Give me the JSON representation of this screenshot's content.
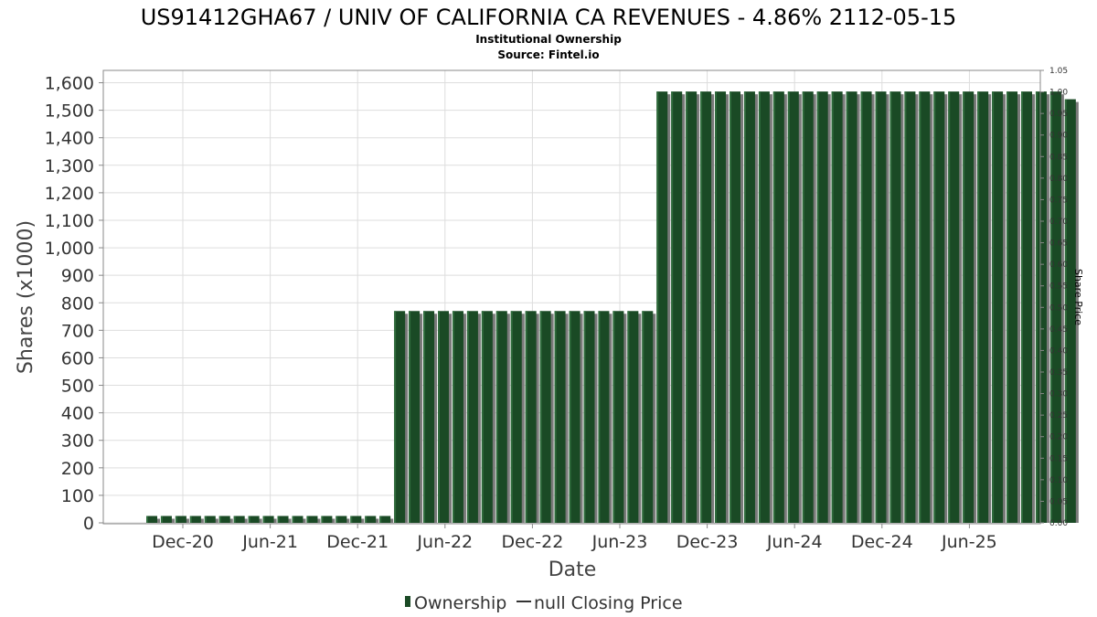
{
  "chart_data": {
    "type": "bar",
    "title": "US91412GHA67 / UNIV OF CALIFORNIA CA REVENUES - 4.86% 2112-05-15",
    "subtitle_lines": [
      "Institutional Ownership",
      "Source: Fintel.io"
    ],
    "xlabel": "Date",
    "ylabel": "Shares (x1000)",
    "y2label": "Share Price",
    "ylim": [
      0,
      1650
    ],
    "y2lim": [
      0,
      1.05
    ],
    "yticks": [
      0,
      100,
      200,
      300,
      400,
      500,
      600,
      700,
      800,
      900,
      1000,
      1100,
      1200,
      1300,
      1400,
      1500,
      1600
    ],
    "ytick_labels": [
      "0",
      "100",
      "200",
      "300",
      "400",
      "500",
      "600",
      "700",
      "800",
      "900",
      "1,000",
      "1,100",
      "1,200",
      "1,300",
      "1,400",
      "1,500",
      "1,600"
    ],
    "y2tick_labels": [
      "0.00",
      "0.05",
      "0.10",
      "0.15",
      "0.20",
      "0.25",
      "0.30",
      "0.35",
      "0.40",
      "0.45",
      "0.50",
      "0.55",
      "0.60",
      "0.65",
      "0.70",
      "0.75",
      "0.80",
      "0.85",
      "0.90",
      "0.95",
      "1.00",
      "1.05"
    ],
    "xtick_labels": [
      "Dec-20",
      "Jun-21",
      "Dec-21",
      "Jun-22",
      "Dec-22",
      "Jun-23",
      "Dec-23",
      "Jun-24",
      "Dec-24",
      "Jun-25"
    ],
    "grid": true,
    "legend_placement": "bottom",
    "legend": [
      {
        "label": "Ownership",
        "marker": "bar",
        "color": "#1a4a25"
      },
      {
        "label": "null Closing Price",
        "marker": "line",
        "color": "#333333"
      }
    ],
    "colors": {
      "bar": "#1a4a25",
      "bar_highlight": "#2f6b3c",
      "bar_shadow": "#7a7a7a",
      "grid": "#dddddd",
      "frame": "#888888"
    },
    "series": [
      {
        "name": "Ownership",
        "values": [
          25,
          25,
          25,
          25,
          25,
          25,
          25,
          25,
          25,
          25,
          25,
          25,
          25,
          25,
          25,
          25,
          25,
          770,
          770,
          770,
          770,
          770,
          770,
          770,
          770,
          770,
          770,
          770,
          770,
          770,
          770,
          770,
          770,
          770,
          770,
          1568,
          1568,
          1568,
          1568,
          1568,
          1568,
          1568,
          1568,
          1568,
          1568,
          1568,
          1568,
          1568,
          1568,
          1568,
          1568,
          1568,
          1568,
          1568,
          1568,
          1568,
          1568,
          1568,
          1568,
          1568,
          1568,
          1568,
          1568,
          1540
        ]
      }
    ]
  }
}
